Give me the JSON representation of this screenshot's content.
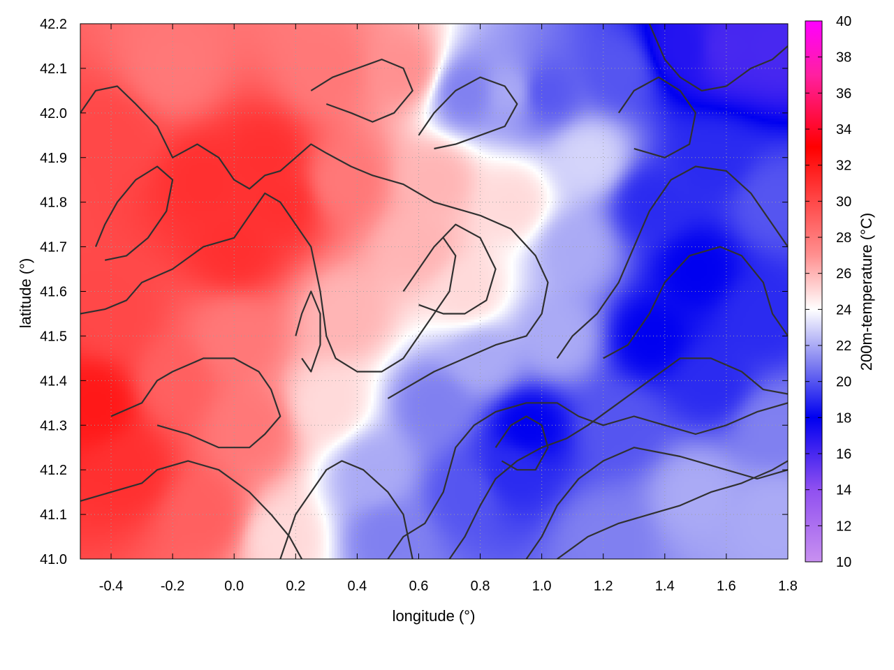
{
  "chart_data": {
    "type": "heatmap",
    "title": "",
    "xlabel": "longitude (°)",
    "ylabel": "latitude (°)",
    "colorbar_label": "200m-temperature (°C)",
    "xlim": [
      -0.5,
      1.8
    ],
    "ylim": [
      41.0,
      42.2
    ],
    "clim": [
      10,
      40
    ],
    "x_ticks": [
      -0.4,
      -0.2,
      0.0,
      0.2,
      0.4,
      0.6,
      0.8,
      1.0,
      1.2,
      1.4,
      1.6,
      1.8
    ],
    "y_ticks": [
      41.0,
      41.1,
      41.2,
      41.3,
      41.4,
      41.5,
      41.6,
      41.7,
      41.8,
      41.9,
      42.0,
      42.1,
      42.2
    ],
    "c_ticks": [
      10,
      12,
      14,
      16,
      18,
      20,
      22,
      24,
      26,
      28,
      30,
      32,
      34,
      36,
      38,
      40
    ],
    "x_tick_labels": [
      "-0.4",
      "-0.2",
      "0.0",
      "0.2",
      "0.4",
      "0.6",
      "0.8",
      "1.0",
      "1.2",
      "1.4",
      "1.6",
      "1.8"
    ],
    "y_tick_labels": [
      "41.0",
      "41.1",
      "41.2",
      "41.3",
      "41.4",
      "41.5",
      "41.6",
      "41.7",
      "41.8",
      "41.9",
      "42.0",
      "42.1",
      "42.2"
    ],
    "c_tick_labels": [
      "10",
      "12",
      "14",
      "16",
      "18",
      "20",
      "22",
      "24",
      "26",
      "28",
      "30",
      "32",
      "34",
      "36",
      "38",
      "40"
    ],
    "grid": true,
    "colormap": [
      {
        "value": 10,
        "color": "#c890f0"
      },
      {
        "value": 14,
        "color": "#9050f0"
      },
      {
        "value": 18,
        "color": "#0000f0"
      },
      {
        "value": 21,
        "color": "#8080f0"
      },
      {
        "value": 24,
        "color": "#ffffff"
      },
      {
        "value": 27,
        "color": "#ff9090"
      },
      {
        "value": 33,
        "color": "#ff0000"
      },
      {
        "value": 37,
        "color": "#ff20a0"
      },
      {
        "value": 40,
        "color": "#ff00ff"
      }
    ],
    "temperature_anchors": [
      {
        "lon": -0.45,
        "lat": 41.35,
        "temp": 32
      },
      {
        "lon": -0.35,
        "lat": 41.2,
        "temp": 31
      },
      {
        "lon": -0.4,
        "lat": 41.55,
        "temp": 30
      },
      {
        "lon": -0.4,
        "lat": 41.95,
        "temp": 30
      },
      {
        "lon": -0.2,
        "lat": 42.1,
        "temp": 28
      },
      {
        "lon": -0.1,
        "lat": 41.85,
        "temp": 31
      },
      {
        "lon": 0.0,
        "lat": 41.7,
        "temp": 31
      },
      {
        "lon": 0.1,
        "lat": 41.9,
        "temp": 31
      },
      {
        "lon": 0.15,
        "lat": 41.8,
        "temp": 31
      },
      {
        "lon": 0.3,
        "lat": 42.1,
        "temp": 28
      },
      {
        "lon": -0.2,
        "lat": 41.4,
        "temp": 29
      },
      {
        "lon": 0.0,
        "lat": 41.5,
        "temp": 28
      },
      {
        "lon": 0.05,
        "lat": 41.3,
        "temp": 28
      },
      {
        "lon": -0.1,
        "lat": 41.1,
        "temp": 29
      },
      {
        "lon": 0.15,
        "lat": 41.05,
        "temp": 25
      },
      {
        "lon": 0.3,
        "lat": 41.35,
        "temp": 25
      },
      {
        "lon": 0.35,
        "lat": 41.55,
        "temp": 26
      },
      {
        "lon": 0.35,
        "lat": 41.85,
        "temp": 28
      },
      {
        "lon": 0.55,
        "lat": 42.1,
        "temp": 27
      },
      {
        "lon": 0.6,
        "lat": 41.7,
        "temp": 26
      },
      {
        "lon": 0.65,
        "lat": 41.85,
        "temp": 26
      },
      {
        "lon": 0.75,
        "lat": 41.6,
        "temp": 25
      },
      {
        "lon": 0.9,
        "lat": 41.8,
        "temp": 25
      },
      {
        "lon": 0.9,
        "lat": 42.05,
        "temp": 22
      },
      {
        "lon": 0.75,
        "lat": 42.05,
        "temp": 21
      },
      {
        "lon": 1.0,
        "lat": 42.05,
        "temp": 20
      },
      {
        "lon": 0.45,
        "lat": 41.2,
        "temp": 22
      },
      {
        "lon": 0.5,
        "lat": 41.05,
        "temp": 21
      },
      {
        "lon": 0.65,
        "lat": 41.35,
        "temp": 21
      },
      {
        "lon": 0.75,
        "lat": 41.15,
        "temp": 20
      },
      {
        "lon": 0.8,
        "lat": 41.45,
        "temp": 22
      },
      {
        "lon": 0.95,
        "lat": 41.3,
        "temp": 18
      },
      {
        "lon": 0.9,
        "lat": 41.2,
        "temp": 19
      },
      {
        "lon": 1.05,
        "lat": 41.5,
        "temp": 22
      },
      {
        "lon": 1.1,
        "lat": 41.7,
        "temp": 22
      },
      {
        "lon": 1.15,
        "lat": 41.9,
        "temp": 23
      },
      {
        "lon": 1.25,
        "lat": 42.1,
        "temp": 20
      },
      {
        "lon": 1.35,
        "lat": 41.8,
        "temp": 19
      },
      {
        "lon": 1.35,
        "lat": 41.5,
        "temp": 18
      },
      {
        "lon": 1.5,
        "lat": 41.65,
        "temp": 18
      },
      {
        "lon": 1.55,
        "lat": 41.9,
        "temp": 19
      },
      {
        "lon": 1.6,
        "lat": 42.15,
        "temp": 16
      },
      {
        "lon": 1.45,
        "lat": 42.15,
        "temp": 17
      },
      {
        "lon": 1.75,
        "lat": 42.15,
        "temp": 16
      },
      {
        "lon": 1.75,
        "lat": 41.8,
        "temp": 20
      },
      {
        "lon": 1.7,
        "lat": 41.55,
        "temp": 19
      },
      {
        "lon": 1.55,
        "lat": 41.4,
        "temp": 19
      },
      {
        "lon": 1.25,
        "lat": 41.3,
        "temp": 20
      },
      {
        "lon": 1.2,
        "lat": 41.05,
        "temp": 21
      },
      {
        "lon": 1.5,
        "lat": 41.15,
        "temp": 22
      },
      {
        "lon": 1.75,
        "lat": 41.1,
        "temp": 22
      },
      {
        "lon": 1.75,
        "lat": 41.3,
        "temp": 21
      }
    ],
    "contours": [
      [
        [
          -0.5,
          42.0
        ],
        [
          -0.45,
          42.05
        ],
        [
          -0.38,
          42.06
        ],
        [
          -0.32,
          42.02
        ],
        [
          -0.25,
          41.97
        ],
        [
          -0.2,
          41.9
        ],
        [
          -0.12,
          41.93
        ],
        [
          -0.05,
          41.9
        ],
        [
          0.0,
          41.85
        ],
        [
          0.05,
          41.83
        ],
        [
          0.1,
          41.86
        ],
        [
          0.15,
          41.87
        ],
        [
          0.2,
          41.9
        ],
        [
          0.25,
          41.93
        ],
        [
          0.3,
          41.91
        ],
        [
          0.38,
          41.88
        ],
        [
          0.45,
          41.86
        ],
        [
          0.55,
          41.84
        ],
        [
          0.65,
          41.8
        ],
        [
          0.8,
          41.77
        ],
        [
          0.9,
          41.74
        ],
        [
          0.98,
          41.68
        ],
        [
          1.02,
          41.62
        ],
        [
          1.0,
          41.55
        ],
        [
          0.95,
          41.5
        ],
        [
          0.85,
          41.48
        ],
        [
          0.75,
          41.45
        ],
        [
          0.65,
          41.42
        ],
        [
          0.55,
          41.38
        ],
        [
          0.5,
          41.36
        ]
      ],
      [
        [
          -0.5,
          41.55
        ],
        [
          -0.42,
          41.56
        ],
        [
          -0.35,
          41.58
        ],
        [
          -0.3,
          41.62
        ],
        [
          -0.2,
          41.65
        ],
        [
          -0.1,
          41.7
        ],
        [
          0.0,
          41.72
        ],
        [
          0.05,
          41.77
        ],
        [
          0.1,
          41.82
        ],
        [
          0.15,
          41.8
        ],
        [
          0.2,
          41.75
        ],
        [
          0.25,
          41.7
        ],
        [
          0.28,
          41.6
        ],
        [
          0.3,
          41.5
        ],
        [
          0.33,
          41.45
        ],
        [
          0.4,
          41.42
        ],
        [
          0.48,
          41.42
        ],
        [
          0.55,
          41.45
        ],
        [
          0.6,
          41.5
        ],
        [
          0.65,
          41.55
        ],
        [
          0.7,
          41.6
        ],
        [
          0.72,
          41.68
        ],
        [
          0.68,
          41.72
        ]
      ],
      [
        [
          -0.4,
          41.32
        ],
        [
          -0.3,
          41.35
        ],
        [
          -0.25,
          41.4
        ],
        [
          -0.2,
          41.42
        ],
        [
          -0.1,
          41.45
        ],
        [
          0.0,
          41.45
        ],
        [
          0.08,
          41.42
        ],
        [
          0.12,
          41.38
        ],
        [
          0.15,
          41.32
        ],
        [
          0.1,
          41.28
        ],
        [
          0.05,
          41.25
        ],
        [
          -0.05,
          41.25
        ],
        [
          -0.15,
          41.28
        ],
        [
          -0.25,
          41.3
        ]
      ],
      [
        [
          -0.5,
          41.13
        ],
        [
          -0.4,
          41.15
        ],
        [
          -0.3,
          41.17
        ],
        [
          -0.25,
          41.2
        ],
        [
          -0.15,
          41.22
        ],
        [
          -0.05,
          41.2
        ],
        [
          0.05,
          41.15
        ],
        [
          0.12,
          41.1
        ],
        [
          0.18,
          41.05
        ],
        [
          0.22,
          41.0
        ]
      ],
      [
        [
          0.15,
          41.0
        ],
        [
          0.2,
          41.1
        ],
        [
          0.25,
          41.15
        ],
        [
          0.3,
          41.2
        ],
        [
          0.35,
          41.22
        ],
        [
          0.42,
          41.2
        ],
        [
          0.5,
          41.15
        ],
        [
          0.55,
          41.1
        ],
        [
          0.58,
          41.0
        ]
      ],
      [
        [
          0.5,
          41.0
        ],
        [
          0.55,
          41.05
        ],
        [
          0.62,
          41.08
        ],
        [
          0.68,
          41.15
        ],
        [
          0.72,
          41.25
        ],
        [
          0.78,
          41.3
        ],
        [
          0.85,
          41.33
        ],
        [
          0.95,
          41.35
        ],
        [
          1.05,
          41.35
        ],
        [
          1.12,
          41.32
        ],
        [
          1.2,
          41.3
        ],
        [
          1.3,
          41.32
        ],
        [
          1.4,
          41.3
        ],
        [
          1.5,
          41.28
        ],
        [
          1.6,
          41.3
        ],
        [
          1.7,
          41.33
        ],
        [
          1.8,
          41.35
        ]
      ],
      [
        [
          0.7,
          41.0
        ],
        [
          0.75,
          41.05
        ],
        [
          0.8,
          41.12
        ],
        [
          0.85,
          41.18
        ],
        [
          0.92,
          41.22
        ],
        [
          1.0,
          41.25
        ],
        [
          1.08,
          41.27
        ],
        [
          1.15,
          41.3
        ],
        [
          1.25,
          41.35
        ],
        [
          1.35,
          41.4
        ],
        [
          1.45,
          41.45
        ],
        [
          1.55,
          41.45
        ],
        [
          1.65,
          41.42
        ],
        [
          1.72,
          41.38
        ],
        [
          1.8,
          41.37
        ]
      ],
      [
        [
          0.95,
          41.0
        ],
        [
          1.0,
          41.05
        ],
        [
          1.05,
          41.12
        ],
        [
          1.12,
          41.18
        ],
        [
          1.2,
          41.22
        ],
        [
          1.3,
          41.25
        ],
        [
          1.45,
          41.23
        ],
        [
          1.6,
          41.2
        ],
        [
          1.7,
          41.18
        ],
        [
          1.8,
          41.2
        ]
      ],
      [
        [
          1.05,
          41.0
        ],
        [
          1.15,
          41.05
        ],
        [
          1.25,
          41.08
        ],
        [
          1.35,
          41.1
        ],
        [
          1.45,
          41.12
        ],
        [
          1.55,
          41.15
        ],
        [
          1.65,
          41.17
        ],
        [
          1.75,
          41.2
        ],
        [
          1.8,
          41.22
        ]
      ],
      [
        [
          0.85,
          41.25
        ],
        [
          0.9,
          41.3
        ],
        [
          0.95,
          41.32
        ],
        [
          1.0,
          41.3
        ],
        [
          1.02,
          41.25
        ],
        [
          0.98,
          41.2
        ],
        [
          0.92,
          41.2
        ],
        [
          0.87,
          41.22
        ]
      ],
      [
        [
          1.05,
          41.45
        ],
        [
          1.1,
          41.5
        ],
        [
          1.18,
          41.55
        ],
        [
          1.25,
          41.62
        ],
        [
          1.3,
          41.7
        ],
        [
          1.35,
          41.78
        ],
        [
          1.42,
          41.85
        ],
        [
          1.5,
          41.88
        ],
        [
          1.6,
          41.87
        ],
        [
          1.68,
          41.82
        ],
        [
          1.75,
          41.75
        ],
        [
          1.8,
          41.7
        ]
      ],
      [
        [
          1.2,
          41.45
        ],
        [
          1.28,
          41.48
        ],
        [
          1.35,
          41.55
        ],
        [
          1.4,
          41.62
        ],
        [
          1.48,
          41.68
        ],
        [
          1.58,
          41.7
        ],
        [
          1.65,
          41.68
        ],
        [
          1.72,
          41.62
        ],
        [
          1.75,
          41.55
        ],
        [
          1.8,
          41.5
        ]
      ],
      [
        [
          0.6,
          41.95
        ],
        [
          0.65,
          42.0
        ],
        [
          0.72,
          42.05
        ],
        [
          0.8,
          42.08
        ],
        [
          0.88,
          42.06
        ],
        [
          0.92,
          42.02
        ],
        [
          0.88,
          41.97
        ],
        [
          0.8,
          41.95
        ],
        [
          0.72,
          41.93
        ],
        [
          0.65,
          41.92
        ]
      ],
      [
        [
          0.25,
          42.05
        ],
        [
          0.32,
          42.08
        ],
        [
          0.4,
          42.1
        ],
        [
          0.48,
          42.12
        ],
        [
          0.55,
          42.1
        ],
        [
          0.58,
          42.05
        ],
        [
          0.52,
          42.0
        ],
        [
          0.45,
          41.98
        ],
        [
          0.38,
          42.0
        ],
        [
          0.3,
          42.02
        ]
      ],
      [
        [
          1.35,
          42.2
        ],
        [
          1.4,
          42.12
        ],
        [
          1.45,
          42.08
        ],
        [
          1.52,
          42.05
        ],
        [
          1.6,
          42.06
        ],
        [
          1.68,
          42.1
        ],
        [
          1.75,
          42.12
        ],
        [
          1.8,
          42.15
        ]
      ],
      [
        [
          1.25,
          42.0
        ],
        [
          1.3,
          42.05
        ],
        [
          1.38,
          42.08
        ],
        [
          1.45,
          42.05
        ],
        [
          1.5,
          42.0
        ],
        [
          1.48,
          41.93
        ],
        [
          1.4,
          41.9
        ],
        [
          1.3,
          41.92
        ]
      ],
      [
        [
          0.55,
          41.6
        ],
        [
          0.6,
          41.65
        ],
        [
          0.65,
          41.7
        ],
        [
          0.72,
          41.75
        ],
        [
          0.8,
          41.72
        ],
        [
          0.85,
          41.65
        ],
        [
          0.82,
          41.58
        ],
        [
          0.75,
          41.55
        ],
        [
          0.68,
          41.55
        ],
        [
          0.6,
          41.57
        ]
      ],
      [
        [
          0.2,
          41.5
        ],
        [
          0.22,
          41.55
        ],
        [
          0.25,
          41.6
        ],
        [
          0.28,
          41.55
        ],
        [
          0.28,
          41.48
        ],
        [
          0.25,
          41.42
        ],
        [
          0.22,
          41.45
        ]
      ],
      [
        [
          -0.45,
          41.7
        ],
        [
          -0.42,
          41.75
        ],
        [
          -0.38,
          41.8
        ],
        [
          -0.32,
          41.85
        ],
        [
          -0.25,
          41.88
        ],
        [
          -0.2,
          41.85
        ],
        [
          -0.22,
          41.78
        ],
        [
          -0.28,
          41.72
        ],
        [
          -0.35,
          41.68
        ],
        [
          -0.42,
          41.67
        ]
      ]
    ]
  }
}
